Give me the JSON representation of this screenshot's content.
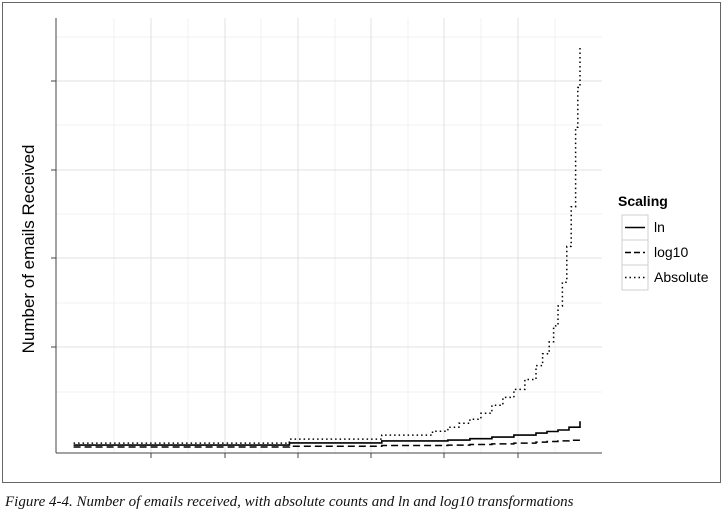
{
  "chart_data": {
    "type": "line",
    "ylabel": "Number of emails Received",
    "xlabel": "",
    "grid": true,
    "legend_position": "right",
    "legend_title": "Scaling",
    "series": [
      {
        "name": "ln",
        "line_style": "solid",
        "x": [
          0,
          97,
          98,
          139,
          140,
          162,
          170,
          180,
          190,
          200,
          210,
          215,
          220,
          225,
          230
        ],
        "values": [
          0.0,
          0.0,
          1.1,
          1.1,
          2.1,
          2.1,
          2.5,
          3.2,
          4.0,
          5.0,
          6.0,
          6.8,
          7.6,
          9.0,
          12.0
        ]
      },
      {
        "name": "log10",
        "line_style": "dashed",
        "x": [
          0,
          97,
          98,
          139,
          140,
          162,
          170,
          180,
          190,
          200,
          210,
          215,
          220,
          225,
          230
        ],
        "values": [
          -1.0,
          -1.0,
          -0.6,
          -0.6,
          -0.2,
          -0.2,
          0.0,
          0.3,
          0.6,
          1.0,
          1.5,
          1.8,
          2.1,
          2.4,
          3.0
        ]
      },
      {
        "name": "Absolute",
        "line_style": "dotted",
        "x": [
          0,
          97,
          98,
          139,
          140,
          150,
          162,
          163,
          170,
          175,
          180,
          185,
          190,
          195,
          200,
          205,
          210,
          213,
          216,
          218,
          220,
          222,
          224,
          226,
          228,
          229,
          230
        ],
        "values": [
          1,
          1,
          3,
          3,
          5,
          5,
          5,
          7,
          9,
          11,
          13,
          16,
          20,
          24,
          28,
          33,
          40,
          46,
          52,
          60,
          70,
          82,
          100,
          120,
          160,
          180,
          200
        ]
      }
    ],
    "xlim": [
      -8,
      240
    ],
    "ylim": [
      -4,
      215
    ]
  },
  "caption": "Figure 4-4. Number of emails received, with absolute counts and ln and log10 transformations"
}
